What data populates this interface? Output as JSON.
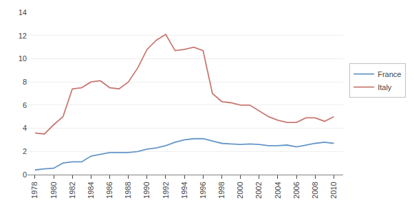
{
  "chart_data": {
    "type": "line",
    "x": [
      1978,
      1979,
      1980,
      1981,
      1982,
      1983,
      1984,
      1985,
      1986,
      1987,
      1988,
      1989,
      1990,
      1991,
      1992,
      1993,
      1994,
      1995,
      1996,
      1997,
      1998,
      1999,
      2000,
      2001,
      2002,
      2003,
      2004,
      2005,
      2006,
      2007,
      2008,
      2009,
      2010
    ],
    "series": [
      {
        "name": "France",
        "color": "#6496C8",
        "values": [
          0.4,
          0.5,
          0.55,
          1.0,
          1.1,
          1.1,
          1.6,
          1.75,
          1.9,
          1.9,
          1.9,
          2.0,
          2.2,
          2.3,
          2.5,
          2.8,
          3.0,
          3.1,
          3.1,
          2.9,
          2.7,
          2.65,
          2.6,
          2.65,
          2.6,
          2.5,
          2.5,
          2.55,
          2.4,
          2.55,
          2.7,
          2.8,
          2.7
        ]
      },
      {
        "name": "Italy",
        "color": "#C87872",
        "values": [
          3.6,
          3.5,
          4.3,
          5.0,
          7.4,
          7.5,
          8.0,
          8.1,
          7.5,
          7.4,
          8.0,
          9.2,
          10.8,
          11.6,
          12.1,
          10.7,
          10.8,
          11.0,
          10.7,
          7.0,
          6.3,
          6.2,
          6.0,
          6.0,
          5.5,
          5.0,
          4.7,
          4.5,
          4.5,
          4.9,
          4.9,
          4.6,
          5.0
        ]
      }
    ],
    "xlim": [
      1977.2,
      2011.0
    ],
    "xticks": [
      1978,
      1980,
      1982,
      1984,
      1986,
      1988,
      1990,
      1992,
      1994,
      1996,
      1998,
      2000,
      2002,
      2004,
      2006,
      2008,
      2010
    ],
    "ylim": [
      0,
      14
    ],
    "yticks": [
      0,
      2,
      4,
      6,
      8,
      10,
      12,
      14
    ],
    "grid": "y",
    "legend": "right"
  }
}
